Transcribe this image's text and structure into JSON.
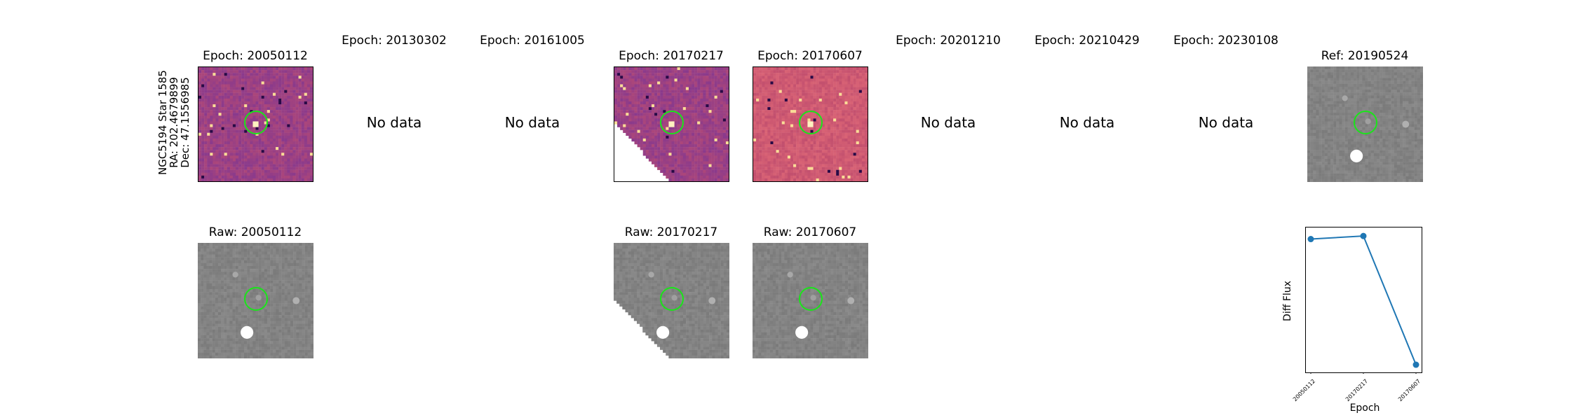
{
  "star_label": {
    "name": "NGC5194 Star 1585",
    "ra": "RA: 202.4679899",
    "dec": "Dec: 47.1556985"
  },
  "top_row": [
    {
      "title": "Epoch: 20050112",
      "has_data": true
    },
    {
      "title": "Epoch: 20130302",
      "has_data": false,
      "nodata_label": "No data"
    },
    {
      "title": "Epoch: 20161005",
      "has_data": false,
      "nodata_label": "No data"
    },
    {
      "title": "Epoch: 20170217",
      "has_data": true
    },
    {
      "title": "Epoch: 20170607",
      "has_data": true
    },
    {
      "title": "Epoch: 20201210",
      "has_data": false,
      "nodata_label": "No data"
    },
    {
      "title": "Epoch: 20210429",
      "has_data": false,
      "nodata_label": "No data"
    },
    {
      "title": "Epoch: 20230108",
      "has_data": false,
      "nodata_label": "No data"
    },
    {
      "title": "Ref: 20190524",
      "has_data": true
    }
  ],
  "bottom_row": [
    {
      "title": "Raw: 20050112"
    },
    {
      "title": "Raw: 20170217"
    },
    {
      "title": "Raw: 20170607"
    }
  ],
  "colors": {
    "aperture": "#19e619",
    "series": "#1f77b4",
    "diff_base": "#8a3a8c",
    "diff_alt": "#c24f6e",
    "raw_gray": "#808080"
  },
  "chart_data": {
    "type": "line",
    "title": "",
    "xlabel": "Epoch",
    "ylabel": "Diff Flux",
    "categories": [
      "20050112",
      "20170217",
      "20170607"
    ],
    "series": [
      {
        "values": [
          0.92,
          0.94,
          0.1
        ]
      }
    ],
    "ylim": [
      0.05,
      1.0
    ],
    "grid": false
  }
}
